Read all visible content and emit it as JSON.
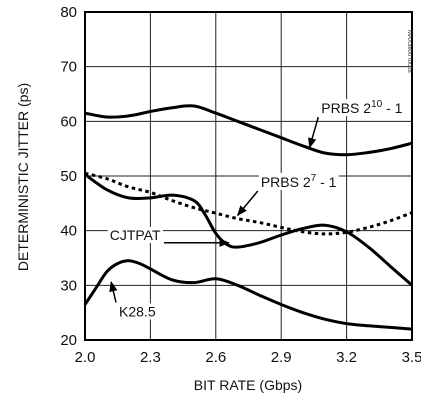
{
  "chart_data": {
    "type": "line",
    "xlabel": "BIT RATE (Gbps)",
    "ylabel": "DETERMINISTIC JITTER (ps)",
    "xlim": [
      2.0,
      3.5
    ],
    "ylim": [
      20,
      80
    ],
    "xticks": [
      "2.0",
      "2.3",
      "2.6",
      "2.9",
      "3.2",
      "3.5"
    ],
    "yticks": [
      "20",
      "30",
      "40",
      "50",
      "60",
      "70",
      "80"
    ],
    "grid": true,
    "watermark": "MAX3800 toc08",
    "series": [
      {
        "name_parts": [
          "PRBS 2",
          "10",
          " - 1"
        ],
        "style": "solid",
        "x": [
          2.0,
          2.1,
          2.2,
          2.3,
          2.4,
          2.5,
          2.6,
          2.7,
          2.8,
          2.9,
          3.0,
          3.1,
          3.2,
          3.3,
          3.4,
          3.5
        ],
        "y": [
          61.5,
          60.8,
          61.0,
          61.8,
          62.5,
          62.8,
          61.5,
          60.0,
          58.5,
          57.0,
          55.5,
          54.2,
          53.9,
          54.3,
          55.0,
          56.0
        ]
      },
      {
        "name_parts": [
          "PRBS 2",
          "7",
          " - 1"
        ],
        "style": "dashed",
        "x": [
          2.0,
          2.1,
          2.2,
          2.3,
          2.4,
          2.5,
          2.6,
          2.7,
          2.8,
          2.9,
          3.0,
          3.1,
          3.2,
          3.3,
          3.4,
          3.5
        ],
        "y": [
          50.5,
          49.5,
          48.0,
          47.0,
          45.5,
          44.2,
          43.2,
          42.2,
          41.5,
          40.6,
          39.8,
          39.4,
          39.7,
          40.6,
          41.8,
          43.3
        ]
      },
      {
        "name": "CJTPAT",
        "style": "solid",
        "x": [
          2.0,
          2.1,
          2.2,
          2.3,
          2.4,
          2.5,
          2.55,
          2.6,
          2.65,
          2.7,
          2.8,
          2.9,
          3.0,
          3.1,
          3.2,
          3.3,
          3.4,
          3.5
        ],
        "y": [
          50.3,
          47.5,
          46.0,
          46.0,
          46.5,
          45.5,
          43.0,
          39.5,
          37.5,
          37.0,
          37.8,
          39.2,
          40.4,
          41.0,
          39.8,
          37.0,
          33.5,
          30.0
        ]
      },
      {
        "name": "K28.5",
        "style": "solid",
        "x": [
          2.0,
          2.05,
          2.1,
          2.15,
          2.2,
          2.25,
          2.3,
          2.4,
          2.5,
          2.6,
          2.7,
          2.8,
          2.9,
          3.0,
          3.1,
          3.2,
          3.3,
          3.4,
          3.5
        ],
        "y": [
          26.5,
          29.5,
          32.5,
          34.0,
          34.5,
          34.0,
          33.0,
          31.0,
          30.5,
          31.2,
          30.0,
          28.2,
          26.5,
          25.0,
          23.8,
          23.0,
          22.6,
          22.3,
          22.0
        ]
      }
    ],
    "annotations": [
      {
        "series": 0,
        "text_parts": [
          "PRBS 2",
          "10",
          " - 1"
        ],
        "at": [
          3.27,
          61.5
        ],
        "arrow_to": [
          3.03,
          55.2
        ]
      },
      {
        "series": 1,
        "text_parts": [
          "PRBS 2",
          "7",
          " - 1"
        ],
        "at": [
          2.98,
          48.0
        ],
        "arrow_to": [
          2.7,
          42.8
        ]
      },
      {
        "series": 2,
        "text": "CJTPAT",
        "at": [
          2.23,
          38.3
        ],
        "arrow_to": [
          2.66,
          37.8
        ]
      },
      {
        "series": 3,
        "text": "K28.5",
        "at": [
          2.24,
          24.3
        ],
        "arrow_to": [
          2.12,
          30.6
        ]
      }
    ]
  }
}
